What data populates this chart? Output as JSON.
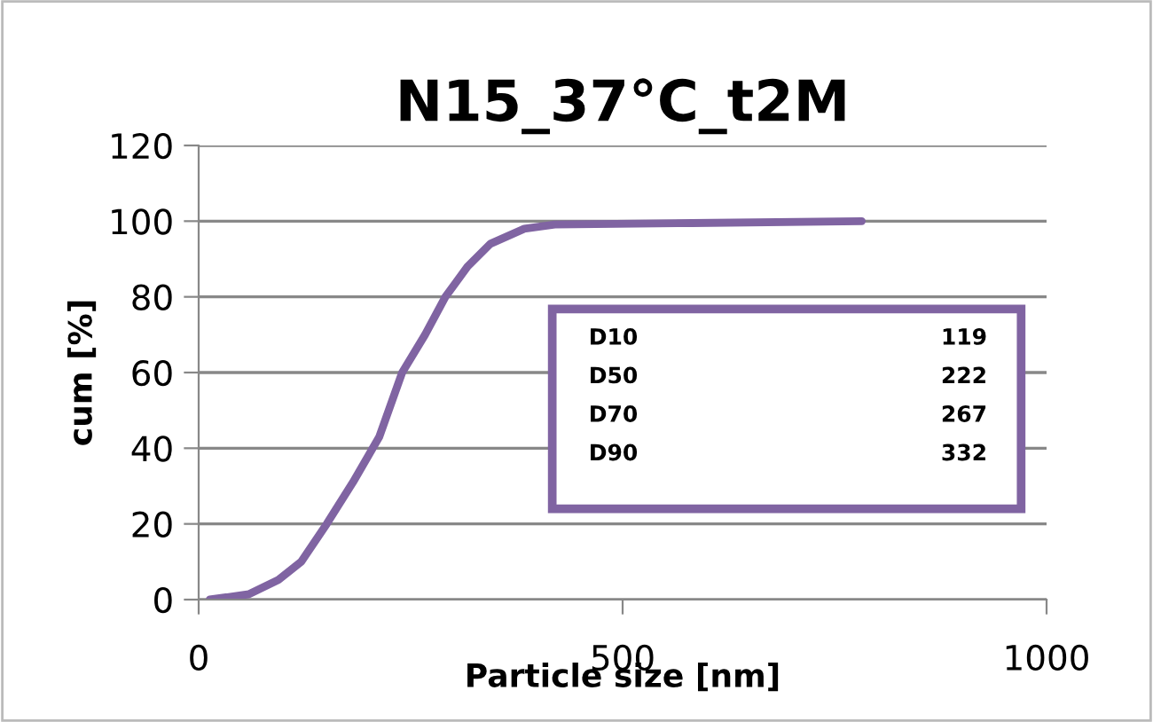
{
  "chart_data": {
    "type": "line",
    "title": "N15_37°C_t2M",
    "xlabel": "Particle size [nm]",
    "ylabel": "cum [%]",
    "x": [
      13,
      59,
      94,
      121,
      151,
      182,
      213,
      240,
      267,
      291,
      317,
      344,
      384,
      420,
      582,
      782
    ],
    "series": [
      {
        "color": "#8064a2",
        "values": [
          0,
          1.4,
          5.2,
          10,
          20,
          31,
          43,
          60,
          70,
          80,
          88,
          94,
          98,
          99.1,
          99.5,
          100
        ]
      }
    ],
    "xlim": [
      0,
      1000
    ],
    "xticks": [
      0,
      500,
      1000
    ],
    "ylim": [
      0,
      120
    ],
    "yticks": [
      0,
      20,
      40,
      60,
      80,
      100,
      120
    ],
    "grid": "y",
    "marker": "none",
    "line_style": "solid",
    "annotations": [
      "D10",
      "119",
      "D50",
      "222",
      "D70",
      "267",
      "D90",
      "332"
    ]
  }
}
